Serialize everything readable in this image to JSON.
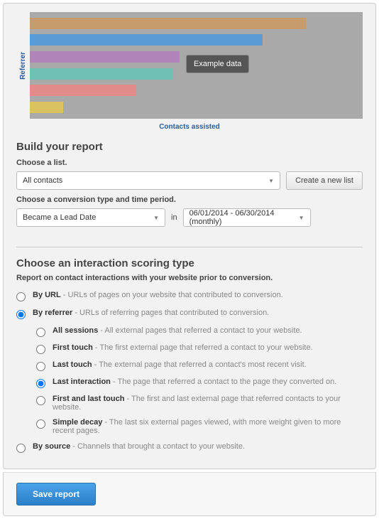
{
  "chart": {
    "type": "bar-horizontal",
    "ylabel": "Referrer",
    "xlabel": "Contacts assisted",
    "background_color": "#a9a9a9",
    "bars": [
      {
        "width_pct": 83,
        "color": "#c69c6d"
      },
      {
        "width_pct": 70,
        "color": "#5b9bd5"
      },
      {
        "width_pct": 45,
        "color": "#b084b8"
      },
      {
        "width_pct": 43,
        "color": "#70c1b3"
      },
      {
        "width_pct": 32,
        "color": "#e28b8b"
      },
      {
        "width_pct": 10,
        "color": "#d9c25f"
      }
    ],
    "tooltip": "Example data"
  },
  "build": {
    "title": "Build your report",
    "choose_list_label": "Choose a list.",
    "list_select": "All contacts",
    "create_list_btn": "Create a new list",
    "conv_label": "Choose a conversion type and time period.",
    "conv_select": "Became a Lead Date",
    "in_word": "in",
    "date_select": "06/01/2014 - 06/30/2014 (monthly)"
  },
  "scoring": {
    "title": "Choose an interaction scoring type",
    "subtitle": "Report on contact interactions with your website prior to conversion.",
    "opts": [
      {
        "t": "By URL",
        "d": " - URLs of pages on your website that contributed to conversion."
      },
      {
        "t": "By referrer",
        "d": " - URLs of referring pages that contributed to conversion."
      },
      {
        "t": "By source",
        "d": " - Channels that brought a contact to your website."
      }
    ],
    "ref_opts": [
      {
        "t": "All sessions",
        "d": " - All external pages that referred a contact to your website."
      },
      {
        "t": "First touch",
        "d": " - The first external page that referred a contact to your website."
      },
      {
        "t": "Last touch",
        "d": " - The external page that referred a contact's most recent visit."
      },
      {
        "t": "Last interaction",
        "d": " - The page that referred a contact to the page they converted on."
      },
      {
        "t": "First and last touch",
        "d": " - The first and last external page that referred contacts to your website."
      },
      {
        "t": "Simple decay",
        "d": " - The last six external pages viewed, with more weight given to more recent pages."
      }
    ],
    "selected_main": 1,
    "selected_ref": 3
  },
  "footer": {
    "save": "Save report"
  }
}
